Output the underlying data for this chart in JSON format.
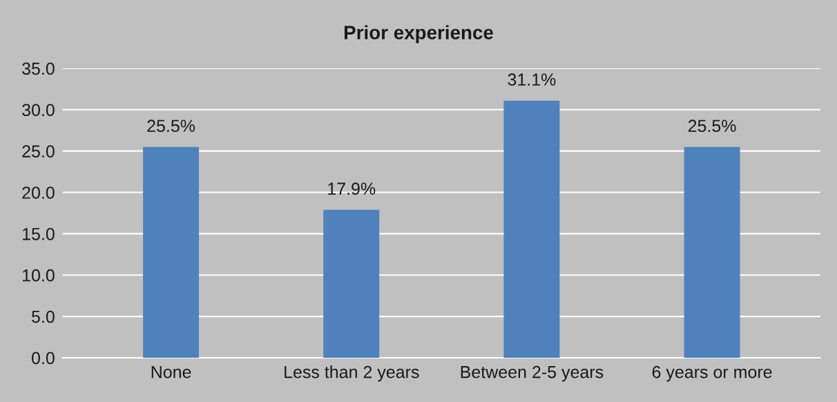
{
  "chart_data": {
    "type": "bar",
    "title": "Prior experience",
    "categories": [
      "None",
      "Less than 2 years",
      "Between 2-5 years",
      "6 years or more"
    ],
    "values": [
      25.5,
      17.9,
      31.1,
      25.5
    ],
    "value_labels": [
      "25.5%",
      "17.9%",
      "31.1%",
      "25.5%"
    ],
    "color": "#4f81bd",
    "ylim": [
      0,
      35
    ],
    "yticks": [
      {
        "value": 0,
        "label": "0.0"
      },
      {
        "value": 5,
        "label": "5.0"
      },
      {
        "value": 10,
        "label": "10.0"
      },
      {
        "value": 15,
        "label": "15.0"
      },
      {
        "value": 20,
        "label": "20.0"
      },
      {
        "value": 25,
        "label": "25.0"
      },
      {
        "value": 30,
        "label": "30.0"
      },
      {
        "value": 35,
        "label": "35.0"
      }
    ],
    "grid": "y",
    "legend": false
  }
}
